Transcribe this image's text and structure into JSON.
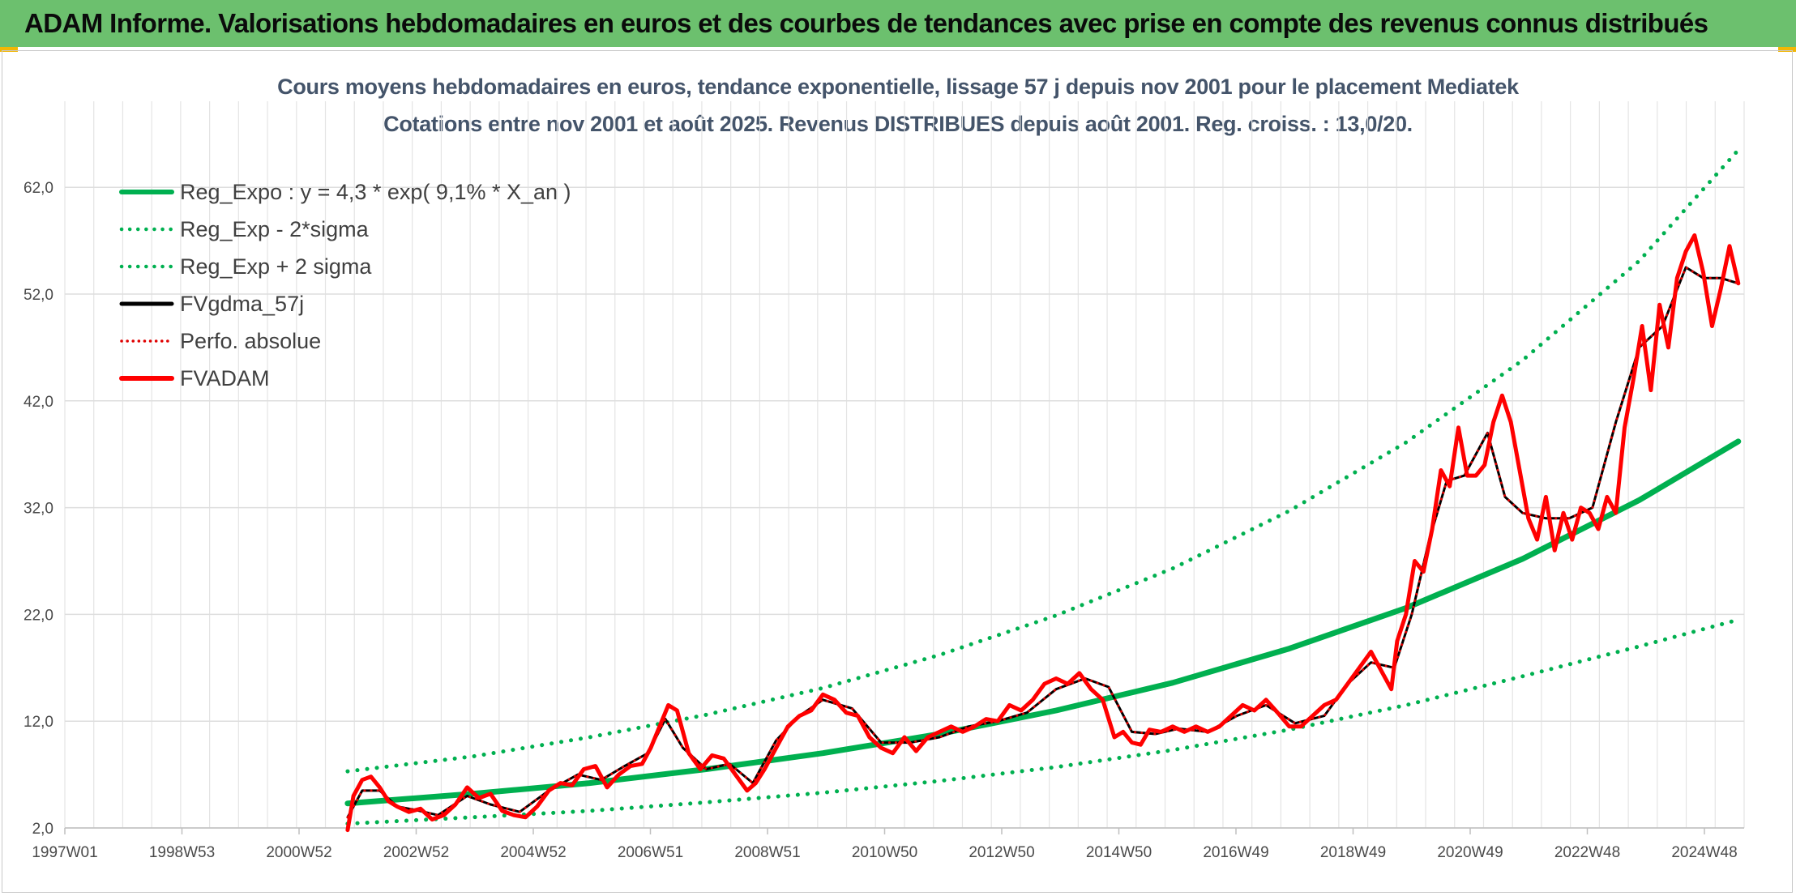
{
  "header": {
    "title": "ADAM Informe. Valorisations hebdomadaires en euros et des courbes de tendances avec prise en compte des revenus connus distribués"
  },
  "chart_data": {
    "type": "line",
    "title": "Cours moyens hebdomadaires en euros, tendance exponentielle, lissage 57 j depuis nov 2001 pour le placement Mediatek",
    "subtitle": "Cotations entre nov 2001 et août 2025. Revenus DISTRIBUES depuis août 2001. Reg. croiss. : 13,0/20.",
    "xlabel": "",
    "ylabel": "",
    "ylim": [
      2,
      68
    ],
    "yticks": [
      "2,0",
      "12,0",
      "22,0",
      "32,0",
      "42,0",
      "52,0",
      "62,0"
    ],
    "xlim": [
      1997.0,
      2025.8
    ],
    "xticks": [
      "1997W01",
      "1998W53",
      "2000W52",
      "2002W52",
      "2004W52",
      "2006W51",
      "2008W51",
      "2010W50",
      "2012W50",
      "2014W50",
      "2016W49",
      "2018W49",
      "2020W49",
      "2022W48",
      "2024W48"
    ],
    "grid": true,
    "legend_position": "top-left",
    "series": [
      {
        "name": "Reg_Expo : y = 4,3 * exp( 9,1% *  X_an )",
        "color": "#00b050",
        "style": "solid-thick",
        "x": [
          2001.85,
          2004,
          2006,
          2008,
          2010,
          2012,
          2014,
          2016,
          2018,
          2020,
          2022,
          2024,
          2025.7
        ],
        "y": [
          4.3,
          5.2,
          6.2,
          7.5,
          9.0,
          10.8,
          13.0,
          15.6,
          18.8,
          22.6,
          27.2,
          32.7,
          38.2
        ]
      },
      {
        "name": "Reg_Exp - 2*sigma",
        "color": "#00b050",
        "style": "dotted",
        "x": [
          2001.85,
          2004,
          2006,
          2008,
          2010,
          2012,
          2014,
          2016,
          2018,
          2020,
          2022,
          2024,
          2025.7
        ],
        "y": [
          2.4,
          3.0,
          3.6,
          4.4,
          5.3,
          6.4,
          7.7,
          9.3,
          11.2,
          13.5,
          16.2,
          19.0,
          21.5
        ]
      },
      {
        "name": "Reg_Exp + 2 sigma",
        "color": "#00b050",
        "style": "dotted",
        "x": [
          2001.85,
          2004,
          2006,
          2008,
          2010,
          2012,
          2014,
          2016,
          2018,
          2020,
          2022,
          2024,
          2025.7
        ],
        "y": [
          7.3,
          8.7,
          10.5,
          12.6,
          15.1,
          18.2,
          21.9,
          26.3,
          31.7,
          38.1,
          45.8,
          55.1,
          65.5
        ]
      },
      {
        "name": "FVgdma_57j",
        "color": "#000000",
        "style": "solid",
        "x": [
          2001.85,
          2002.1,
          2002.4,
          2002.7,
          2003.0,
          2003.4,
          2003.9,
          2004.3,
          2004.8,
          2005.3,
          2005.8,
          2006.2,
          2006.6,
          2007.0,
          2007.3,
          2007.6,
          2008.0,
          2008.4,
          2008.8,
          2009.2,
          2009.6,
          2010.0,
          2010.5,
          2011.0,
          2011.5,
          2012.0,
          2012.5,
          2013.0,
          2013.5,
          2014.0,
          2014.5,
          2014.9,
          2015.3,
          2015.7,
          2016.1,
          2016.6,
          2017.1,
          2017.6,
          2018.1,
          2018.6,
          2019.0,
          2019.4,
          2019.8,
          2020.1,
          2020.4,
          2020.7,
          2021.0,
          2021.4,
          2021.7,
          2022.0,
          2022.4,
          2022.8,
          2023.2,
          2023.6,
          2024.0,
          2024.4,
          2024.8,
          2025.1,
          2025.4,
          2025.7
        ],
        "y": [
          3.0,
          5.5,
          5.5,
          4.0,
          3.7,
          3.2,
          5.0,
          4.2,
          3.5,
          5.5,
          7.0,
          6.5,
          7.8,
          9.0,
          12.2,
          9.5,
          7.5,
          8.0,
          6.2,
          10.2,
          12.5,
          14.0,
          13.2,
          10.0,
          10.0,
          10.5,
          11.5,
          12.0,
          12.8,
          15.0,
          16.0,
          15.2,
          11.0,
          10.8,
          11.3,
          11.0,
          12.5,
          13.5,
          11.8,
          12.5,
          15.5,
          17.5,
          17.0,
          22.0,
          29.0,
          34.5,
          35.0,
          39.0,
          33.0,
          31.5,
          31.0,
          31.0,
          32.0,
          40.0,
          47.0,
          49.0,
          54.5,
          53.5,
          53.5,
          53.0
        ]
      },
      {
        "name": "Perfo. absolue",
        "color": "#e00000",
        "style": "dotted",
        "x": [
          2001.85,
          2002.1,
          2002.4,
          2002.7,
          2003.0,
          2003.4,
          2003.9,
          2004.3,
          2004.8,
          2005.3,
          2005.8,
          2006.2,
          2006.6,
          2007.0,
          2007.3,
          2007.6,
          2008.0,
          2008.4,
          2008.8,
          2009.2,
          2009.6,
          2010.0,
          2010.5,
          2011.0,
          2011.5,
          2012.0,
          2012.5,
          2013.0,
          2013.5,
          2014.0,
          2014.5,
          2014.9,
          2015.3,
          2015.7,
          2016.1,
          2016.6,
          2017.1,
          2017.6,
          2018.1,
          2018.6,
          2019.0,
          2019.4,
          2019.8,
          2020.1,
          2020.4,
          2020.7,
          2021.0,
          2021.4,
          2021.7,
          2022.0,
          2022.4,
          2022.8,
          2023.2,
          2023.6,
          2024.0,
          2024.4,
          2024.8,
          2025.1,
          2025.4,
          2025.7
        ],
        "y": [
          3.0,
          5.5,
          5.5,
          4.0,
          3.7,
          3.2,
          5.0,
          4.2,
          3.5,
          5.5,
          7.0,
          6.5,
          7.8,
          9.0,
          12.2,
          9.5,
          7.5,
          8.0,
          6.2,
          10.2,
          12.5,
          14.0,
          13.2,
          10.0,
          10.0,
          10.5,
          11.5,
          12.0,
          12.8,
          15.0,
          16.0,
          15.2,
          11.0,
          10.8,
          11.3,
          11.0,
          12.5,
          13.5,
          11.8,
          12.5,
          15.5,
          17.5,
          17.0,
          22.0,
          29.0,
          34.5,
          35.0,
          39.0,
          33.0,
          31.5,
          31.0,
          31.0,
          32.0,
          40.0,
          47.0,
          49.0,
          54.5,
          53.5,
          53.5,
          53.0
        ]
      },
      {
        "name": "FVADAM",
        "color": "#ff0000",
        "style": "solid-thick",
        "x": [
          2001.85,
          2001.95,
          2002.1,
          2002.25,
          2002.4,
          2002.55,
          2002.7,
          2002.9,
          2003.1,
          2003.3,
          2003.5,
          2003.7,
          2003.9,
          2004.1,
          2004.3,
          2004.5,
          2004.7,
          2004.9,
          2005.1,
          2005.3,
          2005.5,
          2005.7,
          2005.9,
          2006.1,
          2006.3,
          2006.5,
          2006.7,
          2006.9,
          2007.05,
          2007.2,
          2007.35,
          2007.5,
          2007.7,
          2007.9,
          2008.1,
          2008.3,
          2008.5,
          2008.7,
          2008.85,
          2009.0,
          2009.2,
          2009.4,
          2009.6,
          2009.8,
          2010.0,
          2010.2,
          2010.4,
          2010.6,
          2010.8,
          2011.0,
          2011.2,
          2011.4,
          2011.6,
          2011.8,
          2012.0,
          2012.2,
          2012.4,
          2012.6,
          2012.8,
          2013.0,
          2013.2,
          2013.4,
          2013.6,
          2013.8,
          2014.0,
          2014.2,
          2014.4,
          2014.6,
          2014.8,
          2015.0,
          2015.15,
          2015.3,
          2015.45,
          2015.6,
          2015.8,
          2016.0,
          2016.2,
          2016.4,
          2016.6,
          2016.8,
          2017.0,
          2017.2,
          2017.4,
          2017.6,
          2017.8,
          2018.0,
          2018.2,
          2018.4,
          2018.6,
          2018.8,
          2019.0,
          2019.2,
          2019.4,
          2019.6,
          2019.75,
          2019.85,
          2020.0,
          2020.15,
          2020.3,
          2020.45,
          2020.6,
          2020.75,
          2020.9,
          2021.05,
          2021.2,
          2021.35,
          2021.5,
          2021.65,
          2021.8,
          2021.95,
          2022.1,
          2022.25,
          2022.4,
          2022.55,
          2022.7,
          2022.85,
          2023.0,
          2023.15,
          2023.3,
          2023.45,
          2023.6,
          2023.75,
          2023.9,
          2024.05,
          2024.2,
          2024.35,
          2024.5,
          2024.65,
          2024.8,
          2024.95,
          2025.1,
          2025.25,
          2025.4,
          2025.55,
          2025.7
        ],
        "y": [
          1.8,
          5.0,
          6.5,
          6.8,
          5.8,
          4.5,
          4.0,
          3.5,
          3.8,
          2.8,
          3.2,
          4.2,
          5.8,
          4.8,
          5.2,
          3.6,
          3.2,
          3.0,
          4.0,
          5.5,
          6.2,
          6.0,
          7.5,
          7.8,
          5.8,
          7.0,
          7.8,
          8.0,
          9.5,
          11.5,
          13.5,
          13.0,
          9.0,
          7.5,
          8.8,
          8.5,
          7.0,
          5.5,
          6.2,
          7.5,
          9.5,
          11.5,
          12.5,
          13.0,
          14.5,
          14.0,
          12.8,
          12.5,
          10.5,
          9.5,
          9.0,
          10.5,
          9.2,
          10.5,
          11.0,
          11.5,
          11.0,
          11.5,
          12.2,
          12.0,
          13.5,
          13.0,
          14.0,
          15.5,
          16.0,
          15.5,
          16.5,
          15.0,
          14.0,
          10.5,
          11.0,
          10.0,
          9.8,
          11.2,
          11.0,
          11.5,
          11.0,
          11.5,
          11.0,
          11.5,
          12.5,
          13.5,
          13.0,
          14.0,
          12.8,
          11.5,
          11.5,
          12.5,
          13.5,
          14.0,
          15.5,
          17.0,
          18.5,
          16.5,
          15.0,
          19.5,
          22.0,
          27.0,
          26.0,
          30.0,
          35.5,
          34.0,
          39.5,
          35.0,
          35.0,
          36.0,
          40.0,
          42.5,
          40.0,
          35.5,
          31.0,
          29.0,
          33.0,
          28.0,
          31.5,
          29.0,
          32.0,
          31.5,
          30.0,
          33.0,
          31.5,
          39.5,
          44.0,
          49.0,
          43.0,
          51.0,
          47.0,
          53.5,
          56.0,
          57.5,
          54.0,
          49.0,
          52.5,
          56.5,
          53.0
        ]
      }
    ]
  }
}
